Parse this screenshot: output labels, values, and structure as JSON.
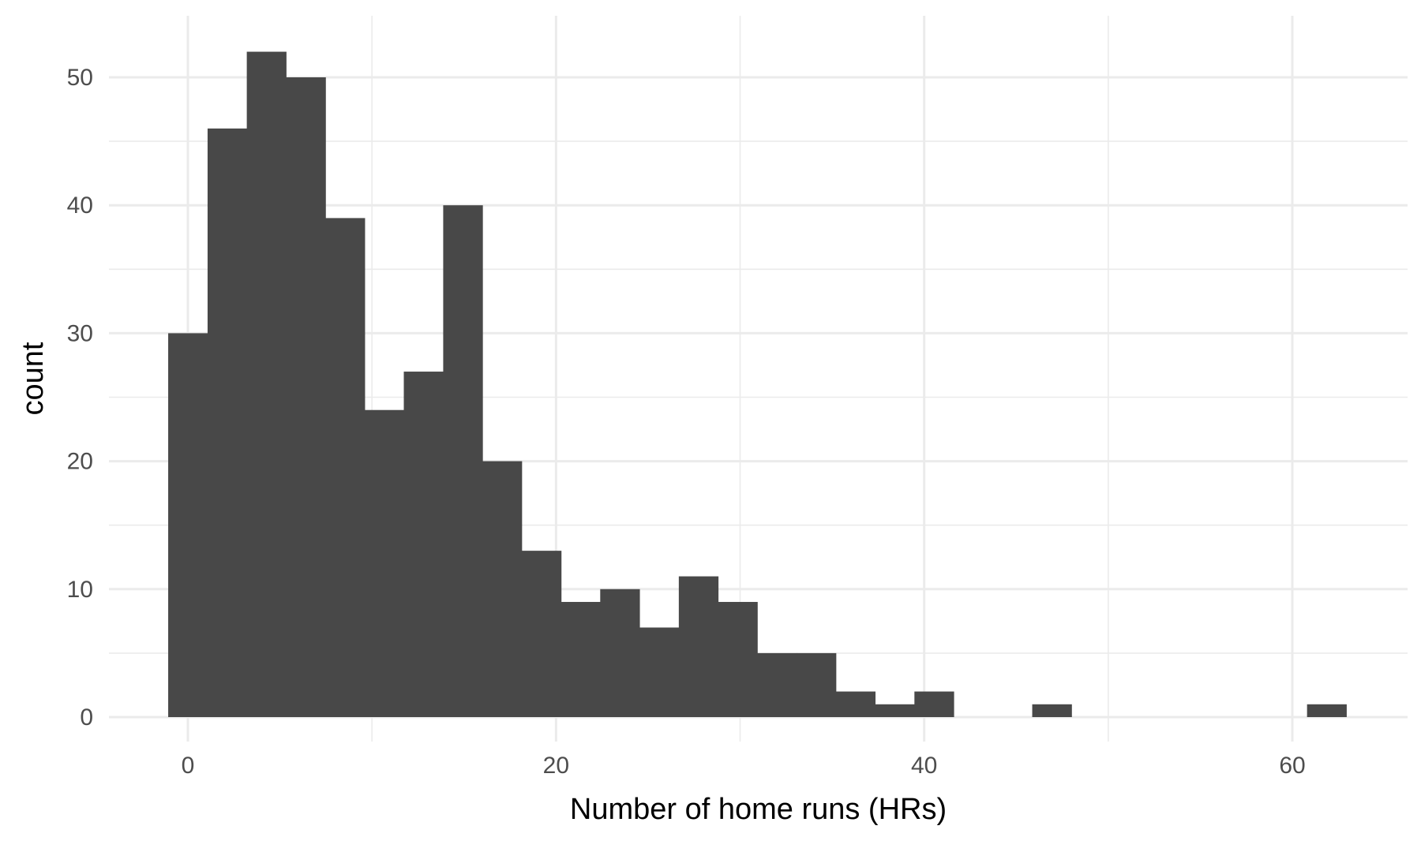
{
  "chart_data": {
    "type": "histogram",
    "title": "",
    "xlabel": "Number of home runs (HRs)",
    "ylabel": "count",
    "xlim": [
      -5,
      66
    ],
    "ylim": [
      -2.5,
      55
    ],
    "x_ticks": [
      0,
      20,
      40,
      60
    ],
    "y_ticks": [
      0,
      10,
      20,
      30,
      40,
      50
    ],
    "grid": true,
    "bar_color": "#484848",
    "bin_width": 2.133,
    "bins": [
      {
        "x0": -1.07,
        "x1": 1.07,
        "count": 30
      },
      {
        "x0": 1.07,
        "x1": 3.2,
        "count": 46
      },
      {
        "x0": 3.2,
        "x1": 5.33,
        "count": 52
      },
      {
        "x0": 5.33,
        "x1": 7.47,
        "count": 50
      },
      {
        "x0": 7.47,
        "x1": 9.6,
        "count": 39
      },
      {
        "x0": 9.6,
        "x1": 11.73,
        "count": 24
      },
      {
        "x0": 11.73,
        "x1": 13.87,
        "count": 27
      },
      {
        "x0": 13.87,
        "x1": 16.0,
        "count": 40
      },
      {
        "x0": 16.0,
        "x1": 18.13,
        "count": 20
      },
      {
        "x0": 18.13,
        "x1": 20.27,
        "count": 13
      },
      {
        "x0": 20.27,
        "x1": 22.4,
        "count": 9
      },
      {
        "x0": 22.4,
        "x1": 24.53,
        "count": 10
      },
      {
        "x0": 24.53,
        "x1": 26.67,
        "count": 7
      },
      {
        "x0": 26.67,
        "x1": 28.8,
        "count": 11
      },
      {
        "x0": 28.8,
        "x1": 30.93,
        "count": 9
      },
      {
        "x0": 30.93,
        "x1": 33.07,
        "count": 5
      },
      {
        "x0": 33.07,
        "x1": 35.2,
        "count": 5
      },
      {
        "x0": 35.2,
        "x1": 37.33,
        "count": 2
      },
      {
        "x0": 37.33,
        "x1": 39.47,
        "count": 1
      },
      {
        "x0": 39.47,
        "x1": 41.6,
        "count": 2
      },
      {
        "x0": 41.6,
        "x1": 43.73,
        "count": 0
      },
      {
        "x0": 43.73,
        "x1": 45.87,
        "count": 0
      },
      {
        "x0": 45.87,
        "x1": 48.0,
        "count": 1
      },
      {
        "x0": 48.0,
        "x1": 50.13,
        "count": 0
      },
      {
        "x0": 50.13,
        "x1": 52.27,
        "count": 0
      },
      {
        "x0": 52.27,
        "x1": 54.4,
        "count": 0
      },
      {
        "x0": 54.4,
        "x1": 56.53,
        "count": 0
      },
      {
        "x0": 56.53,
        "x1": 58.67,
        "count": 0
      },
      {
        "x0": 58.67,
        "x1": 60.8,
        "count": 0
      },
      {
        "x0": 60.8,
        "x1": 62.93,
        "count": 1
      }
    ]
  }
}
